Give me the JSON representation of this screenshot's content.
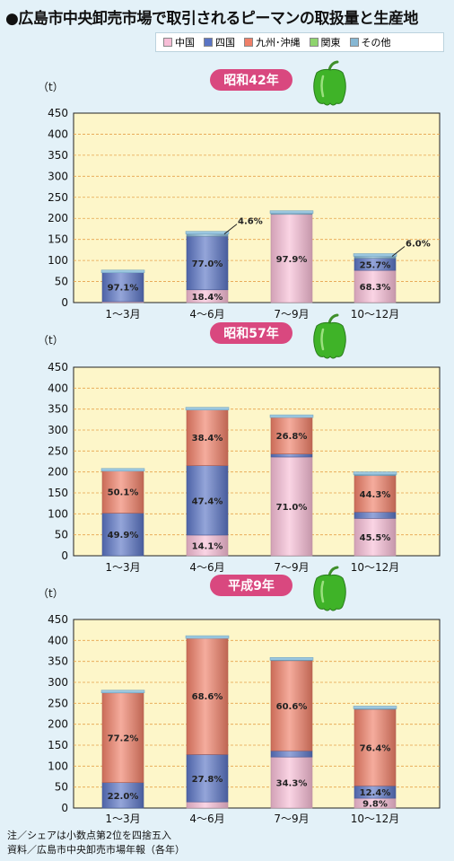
{
  "title": "●広島市中央卸売市場で取引されるピーマンの取扱量と生産地",
  "legend": [
    {
      "name": "中国",
      "color": "#f7bdd6"
    },
    {
      "name": "四国",
      "color": "#5a74c4"
    },
    {
      "name": "九州･沖縄",
      "color": "#ef7f68"
    },
    {
      "name": "関東",
      "color": "#8fd46e"
    },
    {
      "name": "その他",
      "color": "#86b7d3"
    }
  ],
  "notes": {
    "note1": "注／シェアは小数点第2位を四捨五入",
    "note2": "資料／広島市中央卸売市場年報（各年）"
  },
  "chart_data": [
    {
      "type": "bar",
      "title": "昭和42年",
      "ylabel": "（t）",
      "ylim": [
        0,
        450
      ],
      "yticks": [
        0,
        50,
        100,
        150,
        200,
        250,
        300,
        350,
        400,
        450
      ],
      "categories": [
        "1～3月",
        "4～6月",
        "7～9月",
        "10～12月"
      ],
      "totals": [
        73,
        165,
        214,
        112
      ],
      "series": [
        {
          "name": "中国",
          "values": [
            2.9,
            18.4,
            97.9,
            68.3
          ]
        },
        {
          "name": "四国",
          "values": [
            97.1,
            77.0,
            0,
            25.7
          ]
        },
        {
          "name": "九州･沖縄",
          "values": [
            0,
            0,
            0,
            0
          ]
        },
        {
          "name": "関東",
          "values": [
            0,
            0,
            0,
            0
          ]
        },
        {
          "name": "その他",
          "values": [
            0,
            4.6,
            2.1,
            6.0
          ]
        }
      ],
      "labels": [
        {
          "cat": 0,
          "series": 1,
          "text": "97.1%"
        },
        {
          "cat": 1,
          "series": 0,
          "text": "18.4%"
        },
        {
          "cat": 1,
          "series": 1,
          "text": "77.0%"
        },
        {
          "cat": 1,
          "series": 4,
          "text": "4.6%",
          "callout": true
        },
        {
          "cat": 2,
          "series": 0,
          "text": "97.9%"
        },
        {
          "cat": 3,
          "series": 0,
          "text": "68.3%"
        },
        {
          "cat": 3,
          "series": 1,
          "text": "25.7%"
        },
        {
          "cat": 3,
          "series": 4,
          "text": "6.0%",
          "callout": true
        }
      ],
      "grid": true
    },
    {
      "type": "bar",
      "title": "昭和57年",
      "ylabel": "（t）",
      "ylim": [
        0,
        450
      ],
      "yticks": [
        0,
        50,
        100,
        150,
        200,
        250,
        300,
        350,
        400,
        450
      ],
      "categories": [
        "1～3月",
        "4～6月",
        "7～9月",
        "10～12月"
      ],
      "totals": [
        204,
        350,
        332,
        196
      ],
      "series": [
        {
          "name": "中国",
          "values": [
            0,
            14.1,
            71.0,
            45.5
          ]
        },
        {
          "name": "四国",
          "values": [
            49.9,
            47.4,
            2.2,
            7.8
          ]
        },
        {
          "name": "九州･沖縄",
          "values": [
            50.1,
            38.4,
            26.8,
            44.3
          ]
        },
        {
          "name": "関東",
          "values": [
            0,
            0,
            0,
            0
          ]
        },
        {
          "name": "その他",
          "values": [
            0,
            0.1,
            0,
            2.4
          ]
        }
      ],
      "labels": [
        {
          "cat": 0,
          "series": 1,
          "text": "49.9%"
        },
        {
          "cat": 0,
          "series": 2,
          "text": "50.1%"
        },
        {
          "cat": 1,
          "series": 0,
          "text": "14.1%"
        },
        {
          "cat": 1,
          "series": 1,
          "text": "47.4%"
        },
        {
          "cat": 1,
          "series": 2,
          "text": "38.4%"
        },
        {
          "cat": 2,
          "series": 0,
          "text": "71.0%"
        },
        {
          "cat": 2,
          "series": 2,
          "text": "26.8%"
        },
        {
          "cat": 3,
          "series": 0,
          "text": "45.5%"
        },
        {
          "cat": 3,
          "series": 2,
          "text": "44.3%"
        }
      ],
      "grid": true
    },
    {
      "type": "bar",
      "title": "平成9年",
      "ylabel": "（t）",
      "ylim": [
        0,
        450
      ],
      "yticks": [
        0,
        50,
        100,
        150,
        200,
        250,
        300,
        350,
        400,
        450
      ],
      "categories": [
        "1～3月",
        "4～6月",
        "7～9月",
        "10～12月"
      ],
      "totals": [
        277,
        407,
        355,
        239
      ],
      "series": [
        {
          "name": "中国",
          "values": [
            0,
            3.6,
            34.3,
            9.8
          ]
        },
        {
          "name": "四国",
          "values": [
            22.0,
            27.8,
            4.2,
            12.4
          ]
        },
        {
          "name": "九州･沖縄",
          "values": [
            77.2,
            68.6,
            60.6,
            76.4
          ]
        },
        {
          "name": "関東",
          "values": [
            0,
            0,
            0,
            0
          ]
        },
        {
          "name": "その他",
          "values": [
            0.8,
            0,
            0.9,
            1.4
          ]
        }
      ],
      "labels": [
        {
          "cat": 0,
          "series": 1,
          "text": "22.0%"
        },
        {
          "cat": 0,
          "series": 2,
          "text": "77.2%"
        },
        {
          "cat": 1,
          "series": 1,
          "text": "27.8%"
        },
        {
          "cat": 1,
          "series": 2,
          "text": "68.6%"
        },
        {
          "cat": 2,
          "series": 0,
          "text": "34.3%"
        },
        {
          "cat": 2,
          "series": 2,
          "text": "60.6%"
        },
        {
          "cat": 3,
          "series": 0,
          "text": "9.8%"
        },
        {
          "cat": 3,
          "series": 1,
          "text": "12.4%"
        },
        {
          "cat": 3,
          "series": 2,
          "text": "76.4%"
        }
      ],
      "grid": true
    }
  ]
}
